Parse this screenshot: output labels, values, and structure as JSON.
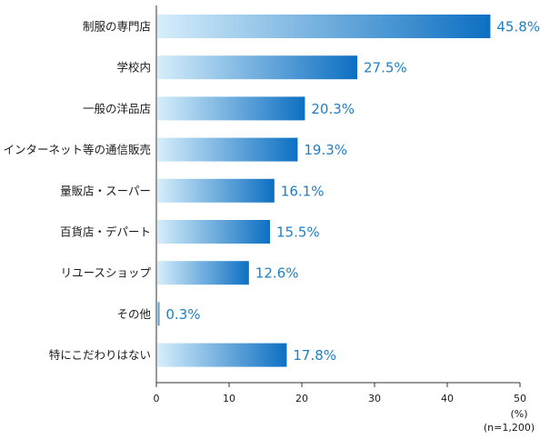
{
  "chart_data": {
    "type": "bar",
    "orientation": "horizontal",
    "categories": [
      "制服の専門店",
      "学校内",
      "一般の洋品店",
      "インターネット等の通信販売",
      "量販店・スーパー",
      "百貨店・デパート",
      "リユースショップ",
      "その他",
      "特にこだわりはない"
    ],
    "values": [
      45.8,
      27.5,
      20.3,
      19.3,
      16.1,
      15.5,
      12.6,
      0.3,
      17.8
    ],
    "value_labels": [
      "45.8%",
      "27.5%",
      "20.3%",
      "19.3%",
      "16.1%",
      "15.5%",
      "12.6%",
      "0.3%",
      "17.8%"
    ],
    "xlim": [
      0,
      50
    ],
    "xticks": [
      "0",
      "10",
      "20",
      "30",
      "40",
      "50"
    ],
    "unit": "(%)",
    "sample": "(n=1,200)",
    "grid": false,
    "colors": {
      "bar_start": "#d6eefb",
      "bar_end": "#0d6fc2",
      "value_text": "#1f7fc4",
      "axis": "#333333"
    }
  }
}
